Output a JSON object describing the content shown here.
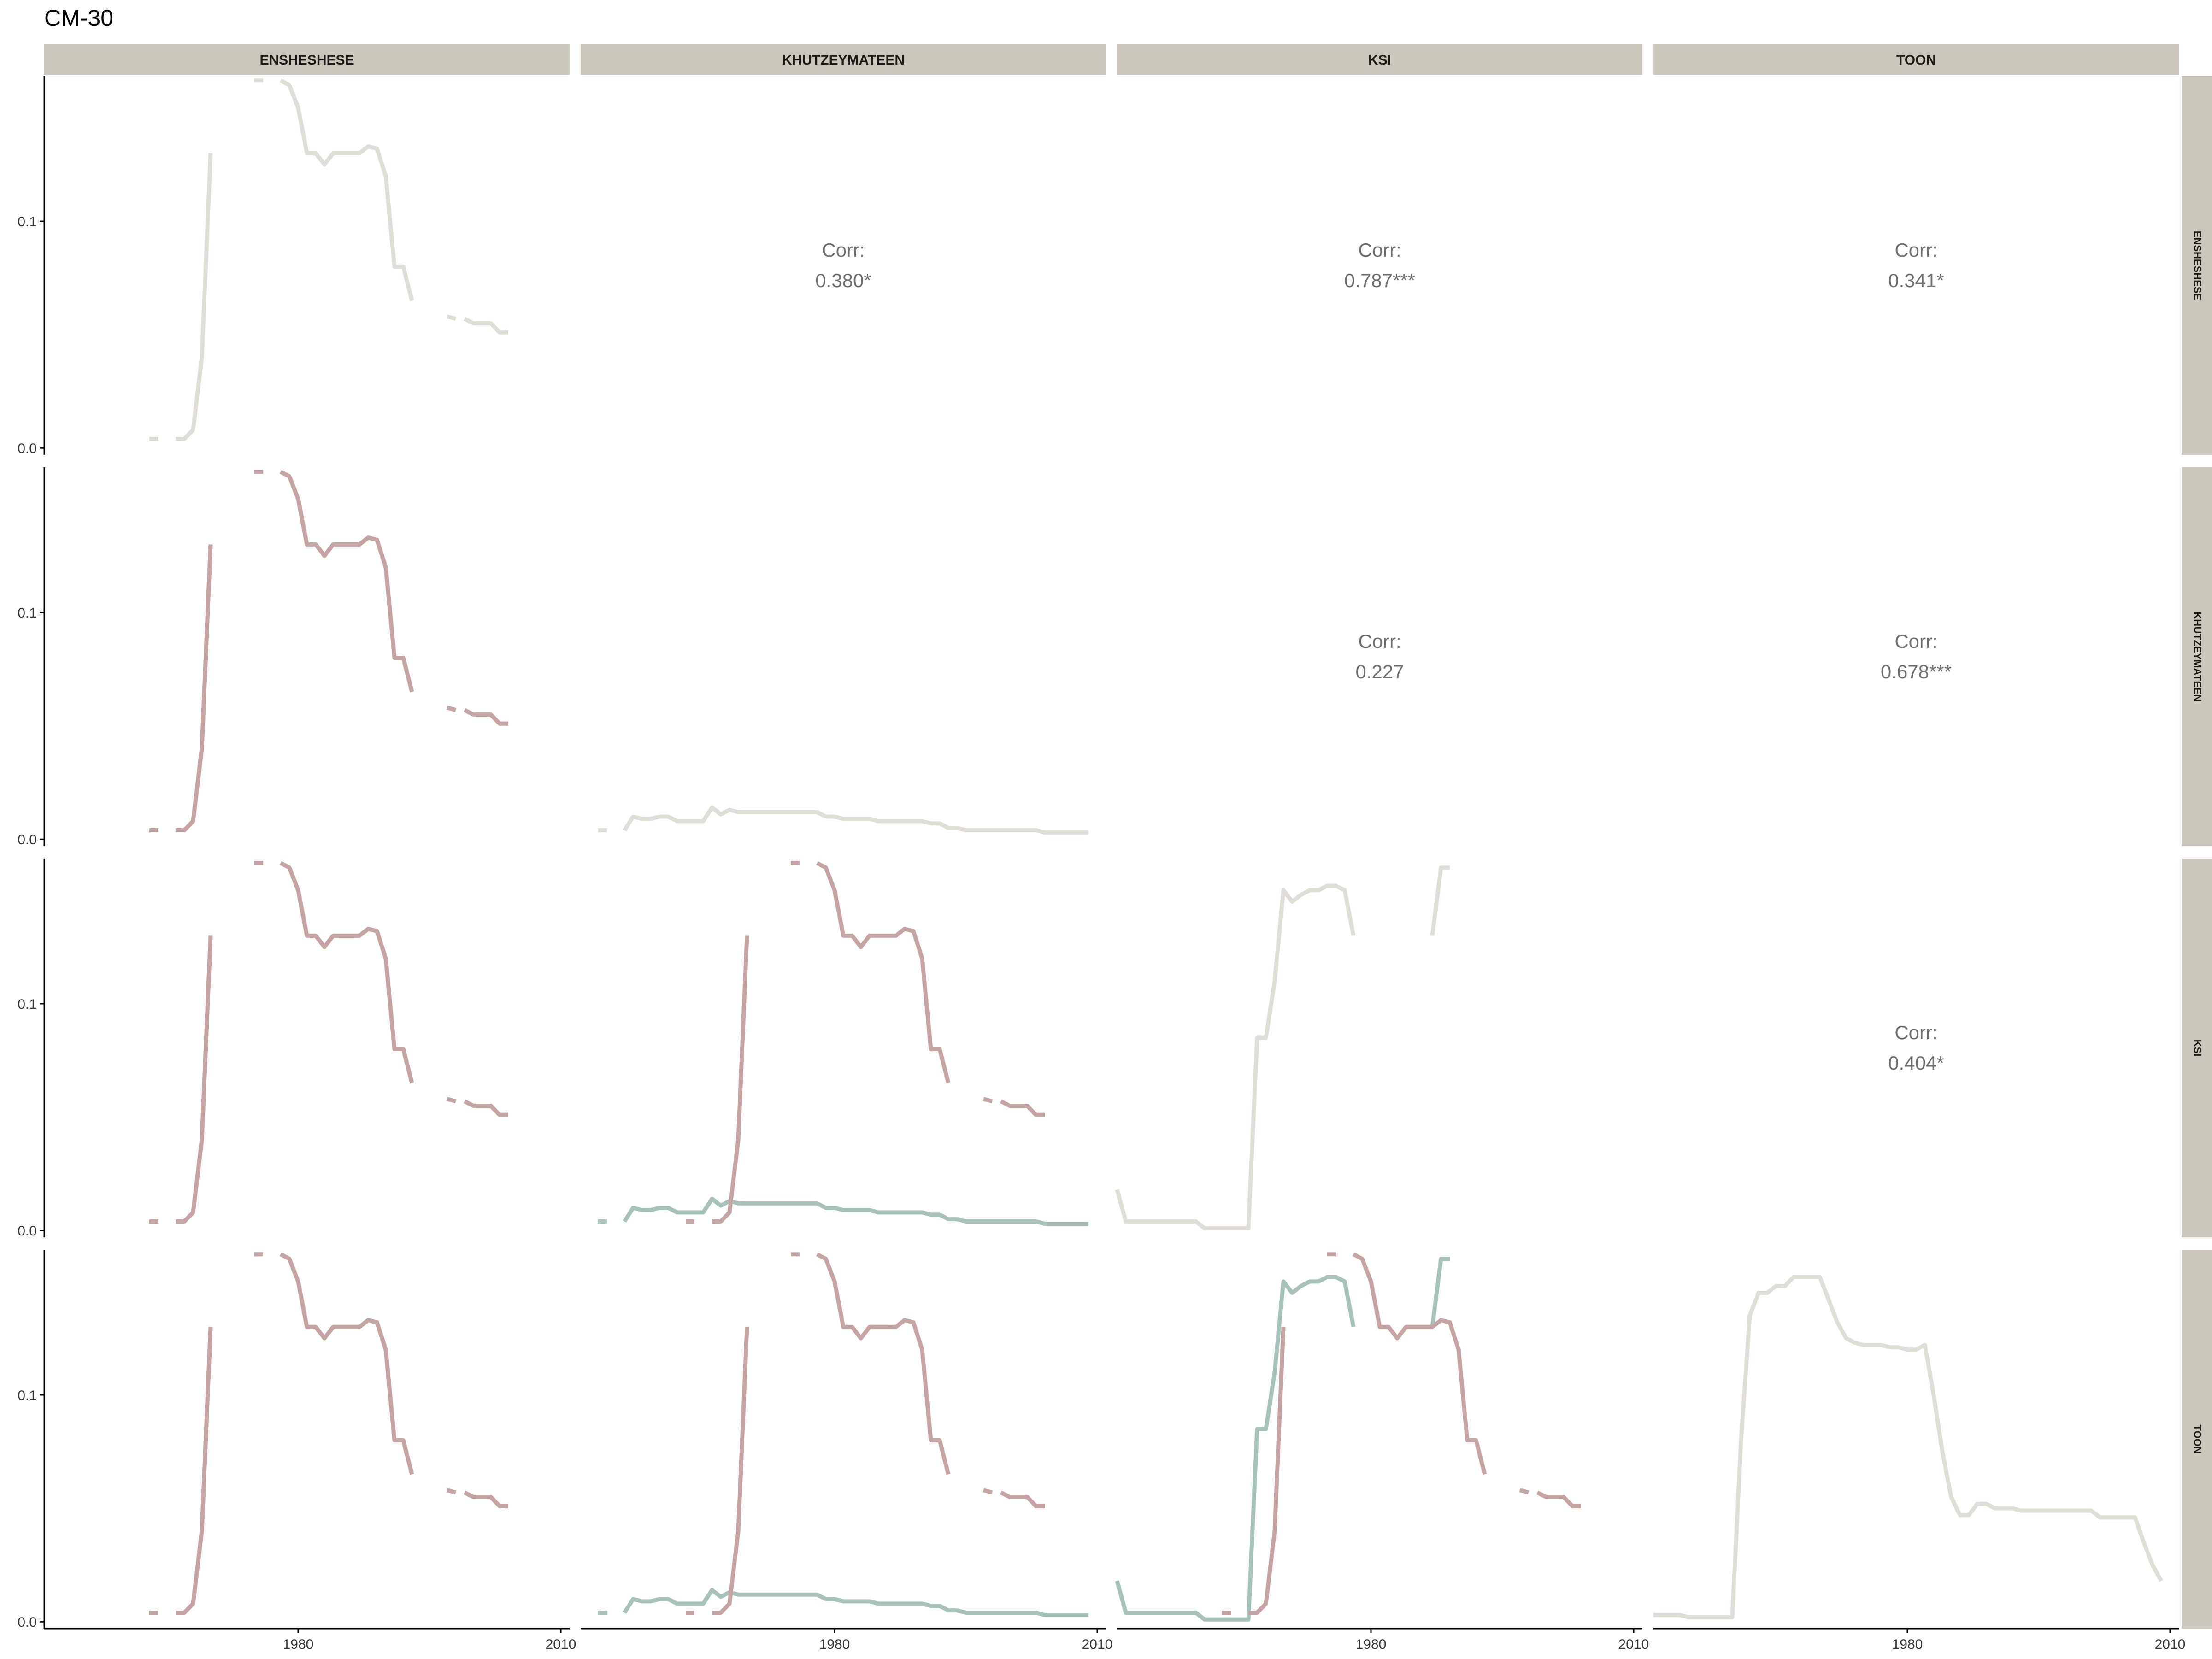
{
  "title": "CM-30",
  "colors": {
    "strip_bg": "#CBC7BC",
    "diagonal_line": "#E0DDD6",
    "series_red": "#C7A4A4",
    "series_green": "#A7C1BB",
    "axis": "#000000",
    "corr_text": "#6E6E6E"
  },
  "chart_data": {
    "type": "line",
    "layout": "pairs-matrix",
    "variables": [
      "ENSHESHESE",
      "KHUTZEYMATEEN",
      "KSI",
      "TOON"
    ],
    "col_labels": [
      "ENSHESHESE",
      "KHUTZEYMATEEN",
      "KSI",
      "TOON"
    ],
    "row_labels": [
      "ENSHESHESE",
      "KHUTZEYMATEEN",
      "KSI",
      "TOON"
    ],
    "x_ticks": [
      1980,
      2010
    ],
    "x_tick_labels": [
      "1980",
      "2010"
    ],
    "xlim": [
      1951,
      2011
    ],
    "y_ticks": [
      0.0,
      0.1
    ],
    "y_tick_labels": [
      "0.0",
      "0.1"
    ],
    "ylim": [
      -0.003,
      0.164
    ],
    "grid": false,
    "correlations": [
      {
        "row": 0,
        "col": 1,
        "label": "Corr:",
        "value": "0.380*"
      },
      {
        "row": 0,
        "col": 2,
        "label": "Corr:",
        "value": "0.787***"
      },
      {
        "row": 0,
        "col": 3,
        "label": "Corr:",
        "value": "0.341*"
      },
      {
        "row": 1,
        "col": 2,
        "label": "Corr:",
        "value": "0.227"
      },
      {
        "row": 1,
        "col": 3,
        "label": "Corr:",
        "value": "0.678***"
      },
      {
        "row": 2,
        "col": 3,
        "label": "Corr:",
        "value": "0.404*"
      }
    ],
    "series": {
      "ENSHESHESE": [
        [
          [
            1963,
            0.004
          ],
          [
            1964,
            0.004
          ]
        ],
        [
          [
            1966,
            0.004
          ],
          [
            1967,
            0.004
          ],
          [
            1968,
            0.008
          ],
          [
            1969,
            0.04
          ],
          [
            1970,
            0.13
          ]
        ],
        [
          [
            1975,
            0.162
          ],
          [
            1976,
            0.162
          ]
        ],
        [
          [
            1978,
            0.162
          ],
          [
            1979,
            0.16
          ],
          [
            1980,
            0.15
          ],
          [
            1981,
            0.13
          ],
          [
            1982,
            0.13
          ],
          [
            1983,
            0.125
          ],
          [
            1984,
            0.13
          ],
          [
            1985,
            0.13
          ],
          [
            1986,
            0.13
          ],
          [
            1987,
            0.13
          ],
          [
            1988,
            0.133
          ],
          [
            1989,
            0.132
          ],
          [
            1990,
            0.12
          ],
          [
            1991,
            0.08
          ],
          [
            1992,
            0.08
          ],
          [
            1993,
            0.065
          ]
        ],
        [
          [
            1997,
            0.058
          ],
          [
            1998,
            0.057
          ]
        ],
        [
          [
            1999,
            0.057
          ],
          [
            2000,
            0.055
          ],
          [
            2001,
            0.055
          ],
          [
            2002,
            0.055
          ],
          [
            2003,
            0.051
          ],
          [
            2004,
            0.051
          ]
        ]
      ],
      "KHUTZEYMATEEN": [
        [
          [
            1953,
            0.004
          ],
          [
            1954,
            0.004
          ]
        ],
        [
          [
            1956,
            0.004
          ],
          [
            1957,
            0.01
          ],
          [
            1958,
            0.009
          ],
          [
            1959,
            0.009
          ],
          [
            1960,
            0.01
          ],
          [
            1961,
            0.01
          ],
          [
            1962,
            0.008
          ],
          [
            1963,
            0.008
          ],
          [
            1964,
            0.008
          ],
          [
            1965,
            0.008
          ],
          [
            1966,
            0.014
          ],
          [
            1967,
            0.011
          ],
          [
            1968,
            0.013
          ],
          [
            1969,
            0.012
          ],
          [
            1970,
            0.012
          ],
          [
            1971,
            0.012
          ],
          [
            1972,
            0.012
          ],
          [
            1973,
            0.012
          ],
          [
            1974,
            0.012
          ],
          [
            1975,
            0.012
          ],
          [
            1976,
            0.012
          ],
          [
            1977,
            0.012
          ],
          [
            1978,
            0.012
          ],
          [
            1979,
            0.01
          ],
          [
            1980,
            0.01
          ],
          [
            1981,
            0.009
          ],
          [
            1982,
            0.009
          ],
          [
            1983,
            0.009
          ],
          [
            1984,
            0.009
          ],
          [
            1985,
            0.008
          ],
          [
            1986,
            0.008
          ],
          [
            1987,
            0.008
          ],
          [
            1988,
            0.008
          ],
          [
            1989,
            0.008
          ],
          [
            1990,
            0.008
          ],
          [
            1991,
            0.007
          ],
          [
            1992,
            0.007
          ],
          [
            1993,
            0.005
          ],
          [
            1994,
            0.005
          ],
          [
            1995,
            0.004
          ],
          [
            1996,
            0.004
          ],
          [
            1997,
            0.004
          ],
          [
            1998,
            0.004
          ],
          [
            1999,
            0.004
          ],
          [
            2000,
            0.004
          ],
          [
            2001,
            0.004
          ],
          [
            2002,
            0.004
          ],
          [
            2003,
            0.004
          ],
          [
            2004,
            0.003
          ],
          [
            2005,
            0.003
          ],
          [
            2006,
            0.003
          ],
          [
            2007,
            0.003
          ],
          [
            2008,
            0.003
          ],
          [
            2009,
            0.003
          ]
        ]
      ],
      "KSI": [
        [
          [
            1951,
            0.018
          ],
          [
            1952,
            0.004
          ],
          [
            1953,
            0.004
          ],
          [
            1954,
            0.004
          ],
          [
            1955,
            0.004
          ],
          [
            1956,
            0.004
          ],
          [
            1957,
            0.004
          ],
          [
            1958,
            0.004
          ],
          [
            1959,
            0.004
          ],
          [
            1960,
            0.004
          ],
          [
            1961,
            0.001
          ],
          [
            1962,
            0.001
          ],
          [
            1963,
            0.001
          ],
          [
            1964,
            0.001
          ],
          [
            1965,
            0.001
          ],
          [
            1966,
            0.001
          ],
          [
            1967,
            0.085
          ],
          [
            1968,
            0.085
          ],
          [
            1969,
            0.11
          ],
          [
            1970,
            0.15
          ],
          [
            1971,
            0.145
          ],
          [
            1972,
            0.148
          ],
          [
            1973,
            0.15
          ],
          [
            1974,
            0.15
          ],
          [
            1975,
            0.152
          ],
          [
            1976,
            0.152
          ],
          [
            1977,
            0.15
          ],
          [
            1978,
            0.13
          ]
        ],
        [
          [
            1987,
            0.13
          ],
          [
            1988,
            0.16
          ],
          [
            1989,
            0.16
          ]
        ]
      ],
      "TOON": [
        [
          [
            1951,
            0.003
          ],
          [
            1952,
            0.003
          ],
          [
            1953,
            0.003
          ],
          [
            1954,
            0.003
          ],
          [
            1955,
            0.002
          ],
          [
            1956,
            0.002
          ],
          [
            1957,
            0.002
          ],
          [
            1958,
            0.002
          ],
          [
            1959,
            0.002
          ],
          [
            1960,
            0.002
          ],
          [
            1961,
            0.08
          ],
          [
            1962,
            0.135
          ],
          [
            1963,
            0.145
          ],
          [
            1964,
            0.145
          ],
          [
            1965,
            0.148
          ],
          [
            1966,
            0.148
          ],
          [
            1967,
            0.152
          ],
          [
            1968,
            0.152
          ],
          [
            1969,
            0.152
          ],
          [
            1970,
            0.152
          ],
          [
            1971,
            0.142
          ],
          [
            1972,
            0.132
          ],
          [
            1973,
            0.125
          ],
          [
            1974,
            0.123
          ],
          [
            1975,
            0.122
          ],
          [
            1976,
            0.122
          ],
          [
            1977,
            0.122
          ],
          [
            1978,
            0.121
          ],
          [
            1979,
            0.121
          ],
          [
            1980,
            0.12
          ],
          [
            1981,
            0.12
          ],
          [
            1982,
            0.122
          ],
          [
            1983,
            0.1
          ],
          [
            1984,
            0.075
          ],
          [
            1985,
            0.055
          ],
          [
            1986,
            0.047
          ],
          [
            1987,
            0.047
          ],
          [
            1988,
            0.052
          ],
          [
            1989,
            0.052
          ],
          [
            1990,
            0.05
          ],
          [
            1991,
            0.05
          ],
          [
            1992,
            0.05
          ],
          [
            1993,
            0.049
          ],
          [
            1994,
            0.049
          ],
          [
            1995,
            0.049
          ],
          [
            1996,
            0.049
          ],
          [
            1997,
            0.049
          ],
          [
            1998,
            0.049
          ],
          [
            1999,
            0.049
          ],
          [
            2000,
            0.049
          ],
          [
            2001,
            0.049
          ],
          [
            2002,
            0.046
          ],
          [
            2003,
            0.046
          ],
          [
            2004,
            0.046
          ],
          [
            2005,
            0.046
          ],
          [
            2006,
            0.046
          ],
          [
            2007,
            0.035
          ],
          [
            2008,
            0.025
          ],
          [
            2009,
            0.018
          ]
        ]
      ]
    }
  }
}
